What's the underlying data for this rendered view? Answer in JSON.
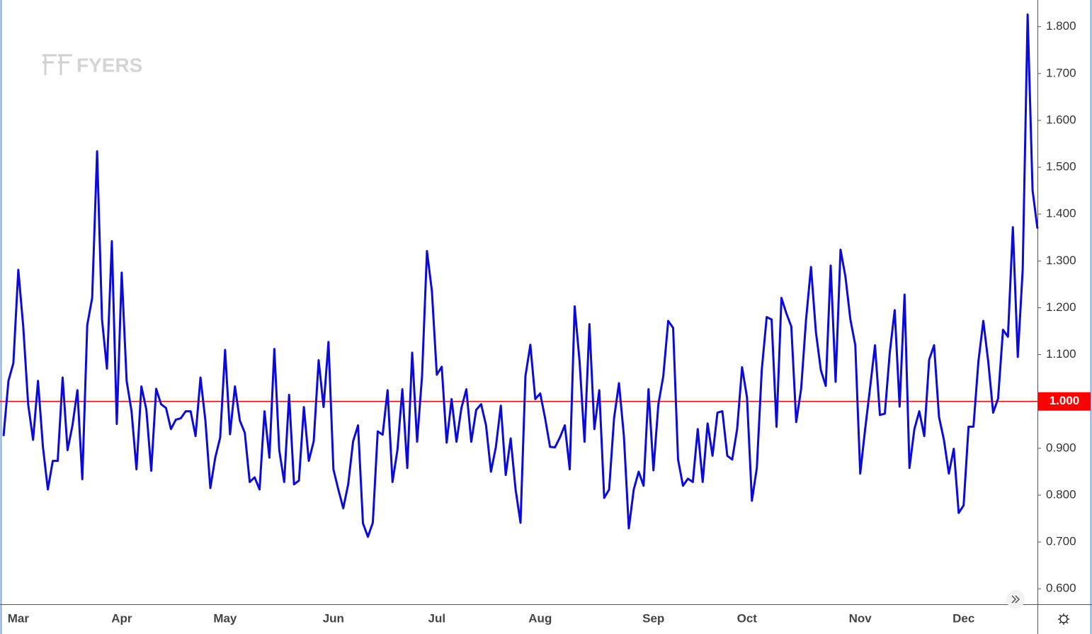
{
  "chart_data": {
    "type": "line",
    "watermark": "FYERS",
    "categories": [
      null,
      null,
      null,
      "Mar",
      null,
      null,
      null,
      null,
      null,
      null,
      null,
      null,
      null,
      null,
      null,
      null,
      null,
      null,
      null,
      null,
      null,
      null,
      null,
      null,
      "Apr",
      null,
      null,
      null,
      null,
      null,
      null,
      null,
      null,
      null,
      null,
      null,
      null,
      null,
      null,
      null,
      null,
      null,
      null,
      null,
      null,
      "May",
      null,
      null,
      null,
      null,
      null,
      null,
      null,
      null,
      null,
      null,
      null,
      null,
      null,
      null,
      null,
      null,
      null,
      null,
      null,
      null,
      null,
      "Jun",
      null,
      null,
      null,
      null,
      null,
      null,
      null,
      null,
      null,
      null,
      null,
      null,
      null,
      null,
      null,
      null,
      null,
      null,
      null,
      null,
      "Jul",
      null,
      null,
      null,
      null,
      null,
      null,
      null,
      null,
      null,
      null,
      null,
      null,
      null,
      null,
      null,
      null,
      null,
      null,
      null,
      null,
      "Aug",
      null,
      null,
      null,
      null,
      null,
      null,
      null,
      null,
      null,
      null,
      null,
      null,
      null,
      null,
      null,
      null,
      null,
      null,
      null,
      null,
      null,
      null,
      "Sep",
      null,
      null,
      null,
      null,
      null,
      null,
      null,
      null,
      null,
      null,
      null,
      null,
      null,
      null,
      null,
      null,
      null,
      null,
      "Oct",
      null,
      null,
      null,
      null,
      null,
      null,
      null,
      null,
      null,
      null,
      null,
      null,
      null,
      null,
      null,
      null,
      null,
      null,
      null,
      null,
      null,
      null,
      "Nov",
      null,
      null,
      null,
      null,
      null,
      null,
      null,
      null,
      null,
      null,
      null,
      null,
      null,
      null,
      null,
      null,
      null,
      null,
      null,
      null,
      "Dec",
      null,
      null,
      null,
      null,
      null,
      null,
      null,
      null,
      null,
      null,
      null,
      null,
      null,
      null,
      null
    ],
    "series": [
      {
        "color": "#0a0adc",
        "values": [
          0.926,
          1.044,
          1.082,
          1.281,
          1.16,
          0.994,
          0.918,
          1.044,
          0.903,
          0.812,
          0.873,
          0.873,
          1.051,
          0.896,
          0.949,
          1.024,
          0.834,
          1.163,
          1.221,
          1.534,
          1.175,
          1.07,
          1.342,
          0.952,
          1.275,
          1.044,
          0.979,
          0.855,
          1.032,
          0.983,
          0.852,
          1.027,
          0.994,
          0.986,
          0.941,
          0.961,
          0.964,
          0.979,
          0.979,
          0.926,
          1.051,
          0.959,
          0.815,
          0.88,
          0.923,
          1.11,
          0.93,
          1.032,
          0.959,
          0.933,
          0.828,
          0.838,
          0.812,
          0.979,
          0.88,
          1.112,
          0.896,
          0.828,
          1.014,
          0.823,
          0.831,
          0.988,
          0.873,
          0.915,
          1.088,
          0.988,
          1.127,
          0.855,
          0.812,
          0.772,
          0.823,
          0.915,
          0.949,
          0.74,
          0.711,
          0.741,
          0.936,
          0.929,
          1.024,
          0.828,
          0.896,
          1.026,
          0.858,
          1.104,
          0.914,
          1.054,
          1.321,
          1.236,
          1.057,
          1.074,
          0.912,
          1.005,
          0.914,
          0.986,
          1.026,
          0.914,
          0.982,
          0.994,
          0.949,
          0.85,
          0.903,
          0.991,
          0.843,
          0.921,
          0.812,
          0.741,
          1.054,
          1.121,
          1.005,
          1.017,
          0.964,
          0.903,
          0.902,
          0.923,
          0.949,
          0.855,
          1.203,
          1.085,
          0.914,
          1.165,
          0.941,
          1.024,
          0.794,
          0.812,
          0.964,
          1.039,
          0.926,
          0.729,
          0.812,
          0.85,
          0.82,
          1.026,
          0.853,
          0.994,
          1.054,
          1.172,
          1.157,
          0.876,
          0.82,
          0.835,
          0.828,
          0.941,
          0.828,
          0.953,
          0.884,
          0.976,
          0.979,
          0.884,
          0.876,
          0.941,
          1.073,
          1.009,
          0.788,
          0.858,
          1.067,
          1.18,
          1.175,
          0.946,
          1.221,
          1.188,
          1.16,
          0.956,
          1.027,
          1.175,
          1.287,
          1.148,
          1.067,
          1.033,
          1.29,
          1.042,
          1.324,
          1.266,
          1.175,
          1.12,
          0.846,
          0.941,
          1.029,
          1.12,
          0.971,
          0.974,
          1.104,
          1.195,
          0.989,
          1.228,
          0.858,
          0.941,
          0.979,
          0.926,
          1.089,
          1.12,
          0.967,
          0.918,
          0.846,
          0.899,
          0.762,
          0.778,
          0.946,
          0.946,
          1.085,
          1.172,
          1.085,
          0.976,
          1.006,
          1.153,
          1.138,
          1.372,
          1.095,
          1.281,
          1.826,
          1.451,
          1.369
        ]
      }
    ],
    "ref_line": {
      "value": 1,
      "label": "1.000",
      "color": "#ff0000"
    },
    "ylim": [
      0.567,
      1.857
    ],
    "yticks": [
      {
        "value": 0.6,
        "label": "0.600"
      },
      {
        "value": 0.7,
        "label": "0.700"
      },
      {
        "value": 0.8,
        "label": "0.800"
      },
      {
        "value": 0.9,
        "label": "0.900"
      },
      {
        "value": 1.1,
        "label": "1.100"
      },
      {
        "value": 1.2,
        "label": "1.200"
      },
      {
        "value": 1.3,
        "label": "1.300"
      },
      {
        "value": 1.4,
        "label": "1.400"
      },
      {
        "value": 1.5,
        "label": "1.500"
      },
      {
        "value": 1.6,
        "label": "1.600"
      },
      {
        "value": 1.7,
        "label": "1.700"
      },
      {
        "value": 1.8,
        "label": "1.800"
      }
    ],
    "grid": false
  }
}
